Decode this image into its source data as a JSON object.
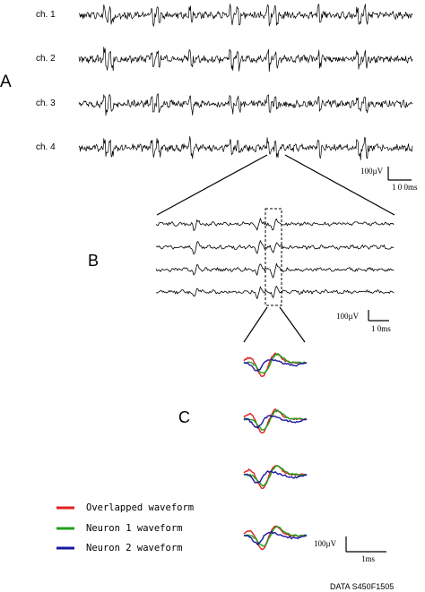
{
  "panel_labels": {
    "a": "A",
    "b": "B",
    "c": "C"
  },
  "channels": [
    "ch. 1",
    "ch. 2",
    "ch. 3",
    "ch. 4"
  ],
  "scale_bars": {
    "a": {
      "amplitude": "100µV",
      "time": "1 0 0ms"
    },
    "b": {
      "amplitude": "100µV",
      "time": "1 0ms"
    },
    "c": {
      "amplitude": "100µV",
      "time": "1ms"
    }
  },
  "legend": [
    {
      "label": "Overlapped waveform",
      "color": "#e02020"
    },
    {
      "label": "Neuron 1 waveform",
      "color": "#20a020"
    },
    {
      "label": "Neuron 2 waveform",
      "color": "#1a1aa0"
    }
  ],
  "footer": "DATA S450F1505"
}
